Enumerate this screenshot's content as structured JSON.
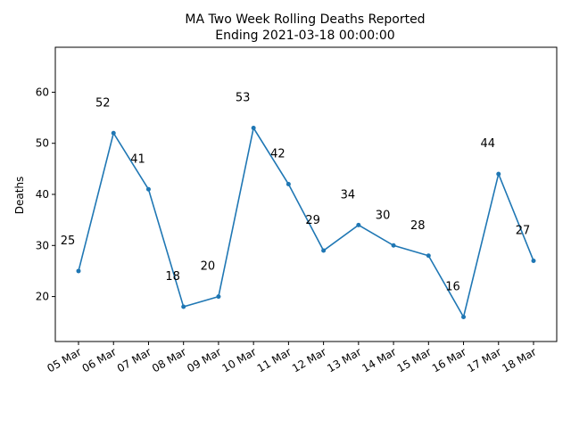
{
  "chart_data": {
    "type": "line",
    "title": "MA Two Week Rolling Deaths Reported",
    "subtitle": "Ending 2021-03-18 00:00:00",
    "xlabel": "",
    "ylabel": "Deaths",
    "categories": [
      "05 Mar",
      "06 Mar",
      "07 Mar",
      "08 Mar",
      "09 Mar",
      "10 Mar",
      "11 Mar",
      "12 Mar",
      "13 Mar",
      "14 Mar",
      "15 Mar",
      "16 Mar",
      "17 Mar",
      "18 Mar"
    ],
    "values": [
      25,
      52,
      41,
      18,
      20,
      53,
      42,
      29,
      34,
      30,
      28,
      16,
      44,
      27
    ],
    "data_labels": [
      "25",
      "52",
      "41",
      "18",
      "20",
      "53",
      "42",
      "29",
      "34",
      "30",
      "28",
      "16",
      "44",
      "27"
    ],
    "ylim": [
      11.2,
      68.8
    ],
    "yticks": [
      20,
      30,
      40,
      50,
      60
    ],
    "grid": false,
    "line_color": "#1f77b4"
  }
}
